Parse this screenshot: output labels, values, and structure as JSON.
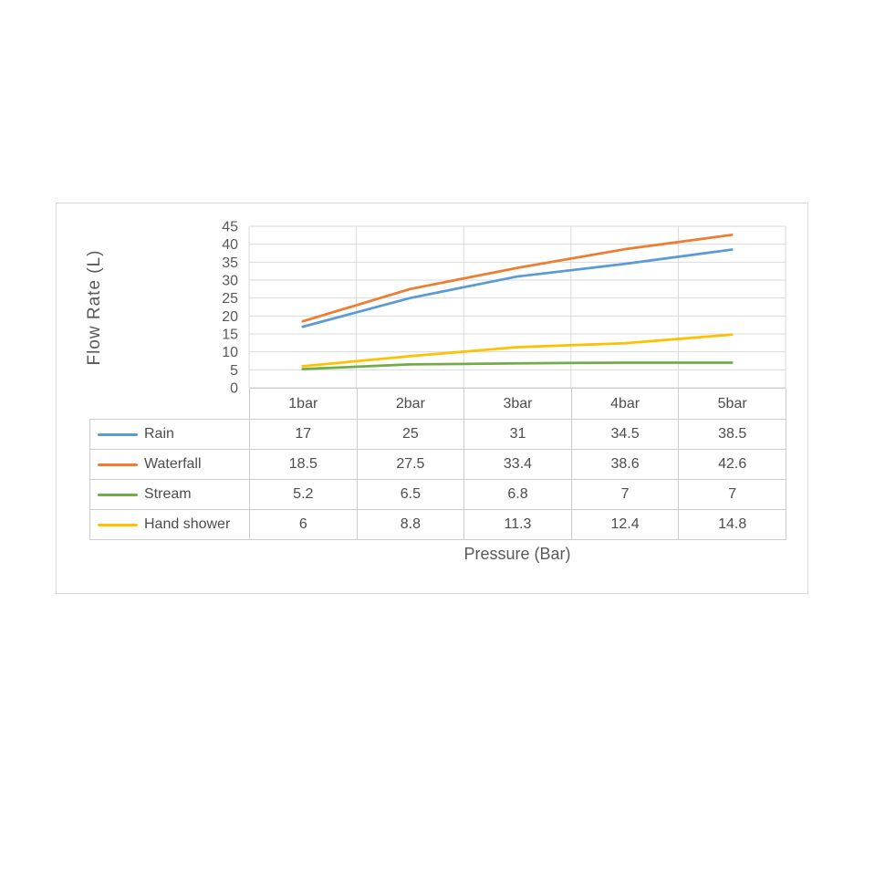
{
  "chart_data": {
    "type": "line",
    "categories": [
      "1bar",
      "2bar",
      "3bar",
      "4bar",
      "5bar"
    ],
    "series": [
      {
        "name": "Rain",
        "color": "#5B9BD5",
        "values": [
          17,
          25,
          31,
          34.5,
          38.5
        ]
      },
      {
        "name": "Waterfall",
        "color": "#ED7D31",
        "values": [
          18.5,
          27.5,
          33.4,
          38.6,
          42.6
        ]
      },
      {
        "name": "Stream",
        "color": "#70AD47",
        "values": [
          5.2,
          6.5,
          6.8,
          7,
          7
        ]
      },
      {
        "name": "Hand shower",
        "color": "#FFC000",
        "values": [
          6,
          8.8,
          11.3,
          12.4,
          14.8
        ]
      }
    ],
    "xlabel": "Pressure (Bar)",
    "ylabel": "Flow Rate (L)",
    "ylim": [
      0,
      45
    ],
    "yticks": [
      0,
      5,
      10,
      15,
      20,
      25,
      30,
      35,
      40,
      45
    ],
    "grid": true,
    "legend_position": "table-left"
  },
  "colors": {
    "grid": "#d9d9d9",
    "table_border": "#cccccc",
    "axis_text": "#595959",
    "table_text": "#4d4d4d",
    "box_border": "#d9d9d9",
    "background": "#ffffff"
  }
}
